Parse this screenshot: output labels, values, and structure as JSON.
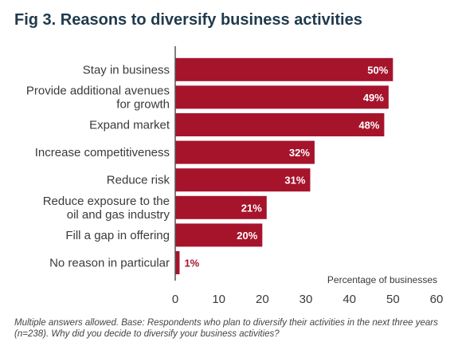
{
  "title": "Fig 3. Reasons to diversify business activities",
  "note": "Multiple answers allowed. Base: Respondents who plan to diversify their activities in the next three years (n=238). Why did you decide to diversify your business activities?",
  "chart_data": {
    "type": "bar",
    "orientation": "horizontal",
    "title": "Fig 3. Reasons to diversify business activities",
    "xlabel": "Percentage of businesses",
    "ylabel": "",
    "xlim": [
      0,
      60
    ],
    "xticks": [
      0,
      10,
      20,
      30,
      40,
      50,
      60
    ],
    "grid": false,
    "bar_color": "#a6142c",
    "categories": [
      [
        "Stay in business"
      ],
      [
        "Provide additional avenues",
        "for growth"
      ],
      [
        "Expand market"
      ],
      [
        "Increase competitiveness"
      ],
      [
        "Reduce risk"
      ],
      [
        "Reduce exposure to the",
        "oil and gas industry"
      ],
      [
        "Fill a gap in offering"
      ],
      [
        "No reason in particular"
      ]
    ],
    "values": [
      50,
      49,
      48,
      32,
      31,
      21,
      20,
      1
    ],
    "value_labels": [
      "50%",
      "49%",
      "48%",
      "32%",
      "31%",
      "21%",
      "20%",
      "1%"
    ]
  }
}
